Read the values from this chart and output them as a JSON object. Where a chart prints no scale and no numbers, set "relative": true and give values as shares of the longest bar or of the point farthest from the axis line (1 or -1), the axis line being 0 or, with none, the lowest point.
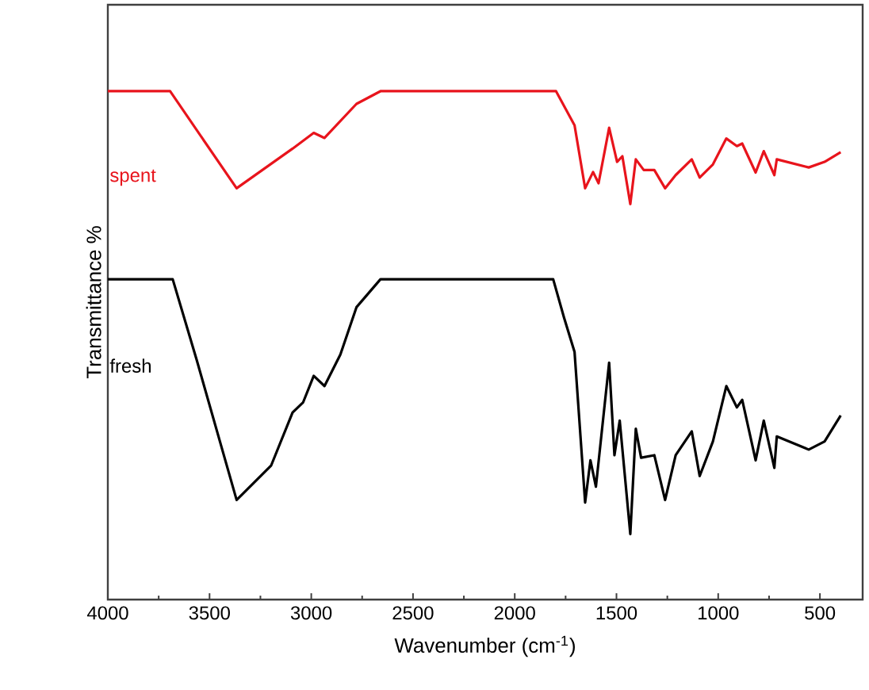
{
  "chart_data": {
    "type": "line",
    "relative": true,
    "xlabel": "Wavenumber (cm$^{-1}$)",
    "ylabel": "Transmittance %",
    "xlim": [
      4000,
      290
    ],
    "xticks": [
      4000,
      {
        "value": 3750,
        "label": null
      },
      3500,
      {
        "value": 3250,
        "label": null
      },
      3000,
      {
        "value": 2750,
        "label": null
      },
      2500,
      {
        "value": 2250,
        "label": null
      },
      2000,
      {
        "value": 1750,
        "label": null
      },
      1500,
      {
        "value": 1250,
        "label": null
      },
      1000,
      {
        "value": 750,
        "label": null
      },
      500
    ],
    "series": [
      {
        "name": "spent",
        "color": "#e8141c",
        "x": [
          4000,
          3694,
          3367,
          3092,
          2988,
          2935,
          2778,
          2660,
          1797,
          1706,
          1654,
          1615,
          1588,
          1536,
          1497,
          1471,
          1432,
          1405,
          1366,
          1314,
          1261,
          1209,
          1130,
          1091,
          1026,
          960,
          908,
          882,
          816,
          776,
          724,
          712,
          555,
          477,
          398
        ],
        "values": [
          1.0,
          1.0,
          0.809,
          0.887,
          0.918,
          0.908,
          0.975,
          1.0,
          1.0,
          0.933,
          0.809,
          0.841,
          0.819,
          0.928,
          0.861,
          0.872,
          0.778,
          0.866,
          0.845,
          0.845,
          0.809,
          0.835,
          0.866,
          0.83,
          0.856,
          0.907,
          0.892,
          0.897,
          0.84,
          0.882,
          0.835,
          0.866,
          0.85,
          0.861,
          0.88
        ]
      },
      {
        "name": "fresh",
        "color": "#000000",
        "x": [
          4000,
          3681,
          3563,
          3367,
          3197,
          3092,
          3040,
          2988,
          2935,
          2857,
          2778,
          2660,
          1811,
          1758,
          1706,
          1654,
          1628,
          1601,
          1536,
          1510,
          1484,
          1432,
          1405,
          1379,
          1314,
          1261,
          1209,
          1130,
          1091,
          1026,
          960,
          908,
          882,
          816,
          776,
          724,
          712,
          555,
          477,
          398
        ],
        "values": [
          0.63,
          0.63,
          0.471,
          0.196,
          0.264,
          0.368,
          0.388,
          0.44,
          0.42,
          0.482,
          0.575,
          0.63,
          0.63,
          0.555,
          0.487,
          0.191,
          0.274,
          0.222,
          0.466,
          0.284,
          0.352,
          0.129,
          0.336,
          0.279,
          0.284,
          0.196,
          0.284,
          0.331,
          0.243,
          0.311,
          0.42,
          0.378,
          0.393,
          0.274,
          0.352,
          0.259,
          0.321,
          0.295,
          0.311,
          0.362
        ]
      }
    ]
  }
}
